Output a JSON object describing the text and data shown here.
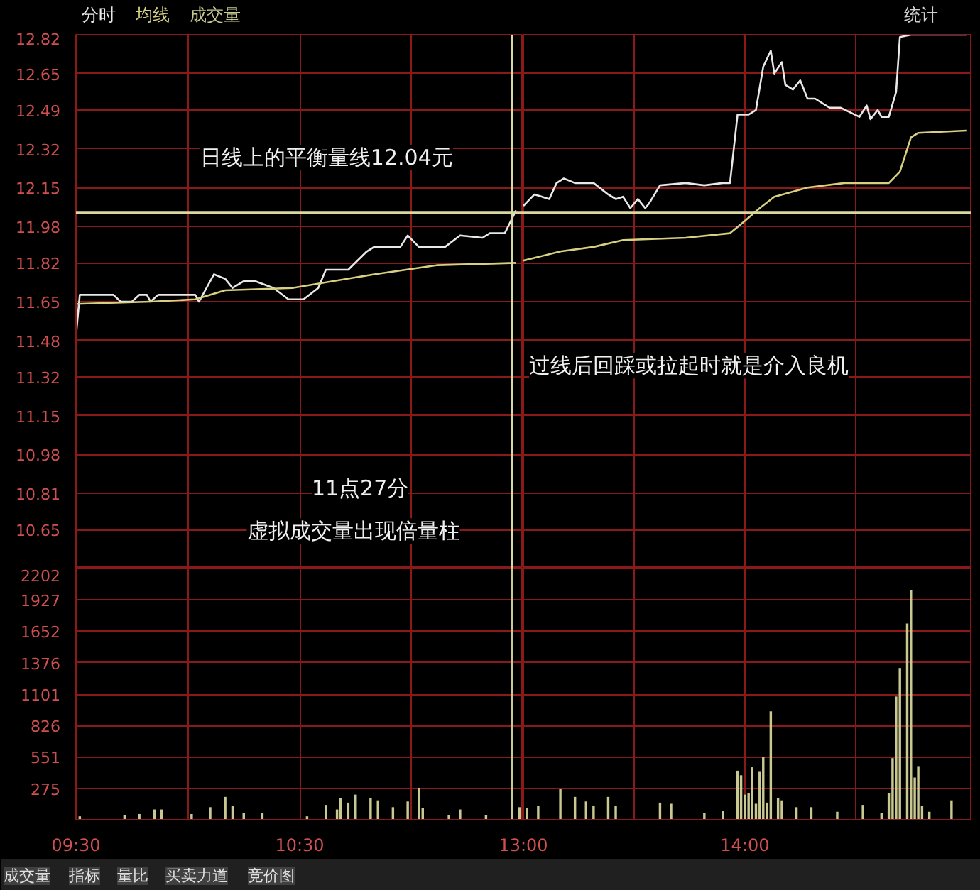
{
  "chart_data": [
    {
      "type": "line",
      "legend": "top left",
      "tick_labels": "y",
      "grid": true,
      "xlim": [
        9.5,
        11.5
      ],
      "ylim": [
        10.48,
        12.82
      ],
      "xticks": [
        9.5,
        10,
        10.5,
        11
      ],
      "yticks": [
        12.82,
        12.65,
        12.49,
        12.32,
        12.15,
        11.98,
        11.82,
        11.65,
        11.48,
        11.32,
        11.15,
        10.98,
        10.81,
        10.65
      ],
      "series": [
        {
          "name": "分时",
          "color": "#e8e8e8",
          "x": [
            9.5,
            9.517,
            9.667,
            9.7,
            9.75,
            9.783,
            9.817,
            9.833,
            9.867,
            10.033,
            10.05,
            10.117,
            10.167,
            10.2,
            10.25,
            10.3,
            10.383,
            10.45,
            10.517,
            10.583,
            10.617,
            10.717,
            10.8,
            10.833,
            10.95,
            10.983,
            11.033,
            11.083,
            11.15,
            11.217,
            11.317,
            11.35,
            11.417,
            11.467
          ],
          "values": [
            11.5,
            11.68,
            11.68,
            11.65,
            11.65,
            11.68,
            11.68,
            11.65,
            11.68,
            11.68,
            11.65,
            11.77,
            11.75,
            11.71,
            11.74,
            11.74,
            11.71,
            11.66,
            11.66,
            11.71,
            11.79,
            11.79,
            11.87,
            11.89,
            11.89,
            11.94,
            11.89,
            11.89,
            11.89,
            11.94,
            11.93,
            11.95,
            11.95,
            12.05
          ]
        },
        {
          "name": "均线",
          "color": "#d8d080",
          "x": [
            9.5,
            9.833,
            10.033,
            10.167,
            10.467,
            10.833,
            11.117,
            11.467
          ],
          "values": [
            11.64,
            11.65,
            11.66,
            11.7,
            11.71,
            11.77,
            11.81,
            11.82
          ]
        }
      ],
      "ref_lines": [
        {
          "axis": "y",
          "value": 12.04,
          "color": "#d8d8a0"
        },
        {
          "axis": "x",
          "value": 11.45,
          "color": "#d8d8a0"
        }
      ],
      "annotations": [
        "日线上的平衡量线12.04元",
        "11点27分",
        "虚拟成交量出现倍量柱"
      ]
    },
    {
      "type": "line",
      "tick_labels": false,
      "grid": true,
      "xlim": [
        13,
        15.02
      ],
      "ylim": [
        10.48,
        12.82
      ],
      "xticks": [
        13,
        13.5,
        14,
        14.5
      ],
      "yticks": [
        12.82,
        12.65,
        12.49,
        12.32,
        12.15,
        11.98,
        11.82,
        11.65,
        11.48,
        11.32,
        11.15,
        10.98,
        10.81,
        10.65
      ],
      "series": [
        {
          "color": "#e8e8e8",
          "x": [
            13,
            13.05,
            13.117,
            13.15,
            13.183,
            13.233,
            13.317,
            13.383,
            13.417,
            13.45,
            13.483,
            13.517,
            13.55,
            13.567,
            13.617,
            13.733,
            13.817,
            13.9,
            13.933,
            13.967,
            14.017,
            14.05,
            14.083,
            14.117,
            14.133,
            14.167,
            14.183,
            14.217,
            14.25,
            14.283,
            14.317,
            14.383,
            14.433,
            14.517,
            14.55,
            14.567,
            14.6,
            14.617,
            14.65,
            14.683,
            14.7,
            14.75,
            15
          ],
          "values": [
            12.07,
            12.12,
            12.1,
            12.17,
            12.19,
            12.17,
            12.17,
            12.12,
            12.1,
            12.11,
            12.06,
            12.1,
            12.06,
            12.08,
            12.16,
            12.17,
            12.16,
            12.17,
            12.17,
            12.47,
            12.47,
            12.49,
            12.68,
            12.75,
            12.65,
            12.7,
            12.6,
            12.58,
            12.62,
            12.54,
            12.54,
            12.5,
            12.5,
            12.46,
            12.51,
            12.45,
            12.49,
            12.46,
            12.46,
            12.57,
            12.81,
            12.82,
            12.82
          ]
        },
        {
          "color": "#d8d080",
          "x": [
            13,
            13.167,
            13.317,
            13.45,
            13.733,
            13.933,
            13.983,
            14.067,
            14.133,
            14.283,
            14.45,
            14.65,
            14.7,
            14.75,
            14.783,
            15
          ],
          "values": [
            11.83,
            11.87,
            11.89,
            11.92,
            11.93,
            11.95,
            11.99,
            12.06,
            12.11,
            12.15,
            12.17,
            12.17,
            12.22,
            12.37,
            12.39,
            12.4
          ]
        }
      ],
      "ref_lines": [
        {
          "axis": "y",
          "value": 12.04,
          "color": "#d8d8a0"
        }
      ],
      "annotations": [
        "过线后回踩或拉起时就是介入良机",
        "统计"
      ]
    },
    {
      "type": "bar",
      "legend": "top left",
      "grid": true,
      "xlim": [
        9.5,
        11.5
      ],
      "ylim": [
        0,
        2202
      ],
      "xticks": [
        {
          "value": 9.5,
          "label": "09:30"
        },
        {
          "value": 10,
          "label": null
        },
        {
          "value": 10.5,
          "label": "10:30"
        },
        {
          "value": 11,
          "label": null
        }
      ],
      "yticks": [
        275,
        551,
        826,
        1101,
        1376,
        1652,
        1927,
        2202
      ],
      "series": [
        {
          "name": "成交量",
          "color": "#c8c890",
          "x": [
            9.517,
            9.717,
            9.783,
            9.85,
            9.883,
            10.017,
            10.1,
            10.167,
            10.2,
            10.25,
            10.333,
            10.533,
            10.617,
            10.667,
            10.683,
            10.717,
            10.75,
            10.817,
            10.85,
            10.917,
            10.983,
            11.033,
            11.05,
            11.167,
            11.217,
            11.333,
            11.45,
            11.483
          ],
          "values": [
            30,
            40,
            50,
            90,
            90,
            50,
            110,
            200,
            120,
            60,
            60,
            30,
            130,
            90,
            190,
            150,
            220,
            190,
            170,
            110,
            160,
            280,
            100,
            40,
            90,
            40,
            2202,
            110
          ]
        }
      ],
      "annotations": [
        "成交量",
        "指标",
        "量比",
        "买卖力道",
        "竞价图"
      ]
    },
    {
      "type": "bar",
      "tick_labels": "x",
      "grid": true,
      "xlim": [
        13,
        15.02
      ],
      "ylim": [
        0,
        2202
      ],
      "xticks": [
        {
          "value": 13,
          "label": "13:00"
        },
        {
          "value": 13.5,
          "label": null
        },
        {
          "value": 14,
          "label": "14:00"
        },
        {
          "value": 14.5,
          "label": null
        }
      ],
      "yticks": [
        275,
        551,
        826,
        1101,
        1376,
        1652,
        1927,
        2202
      ],
      "series": [
        {
          "color": "#c8c890",
          "x": [
            13.017,
            13.067,
            13.167,
            13.233,
            13.283,
            13.317,
            13.383,
            13.417,
            13.617,
            13.667,
            13.817,
            13.9,
            13.967,
            13.983,
            14,
            14.017,
            14.033,
            14.05,
            14.067,
            14.083,
            14.1,
            14.117,
            14.15,
            14.167,
            14.233,
            14.3,
            14.417,
            14.533,
            14.617,
            14.65,
            14.667,
            14.683,
            14.7,
            14.733,
            14.75,
            14.767,
            14.783,
            14.8,
            14.833,
            14.933
          ],
          "values": [
            100,
            120,
            270,
            200,
            160,
            120,
            200,
            120,
            150,
            140,
            60,
            80,
            430,
            390,
            220,
            230,
            460,
            140,
            420,
            550,
            150,
            950,
            190,
            170,
            110,
            110,
            70,
            130,
            60,
            230,
            540,
            1080,
            1330,
            1720,
            2010,
            370,
            470,
            120,
            70,
            170
          ]
        }
      ]
    }
  ]
}
